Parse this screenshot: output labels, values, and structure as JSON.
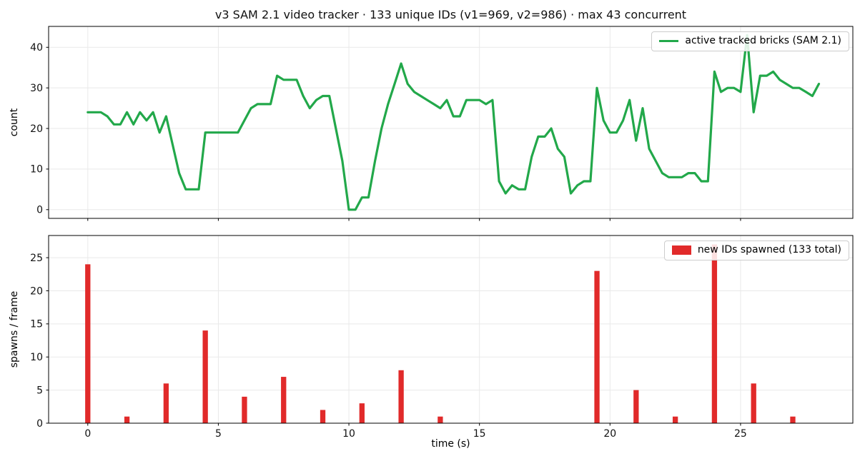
{
  "figure": {
    "title": "v3 SAM 2.1 video tracker · 133 unique IDs (v1=969, v2=986) · max 43 concurrent"
  },
  "style": {
    "grid_color": "#e9e9e9",
    "spine_color": "#000000",
    "background": "#ffffff",
    "tick_color": "#000000"
  },
  "chart_data": [
    {
      "type": "line",
      "legend": "active tracked bricks (SAM 2.1)",
      "ylabel": "count",
      "color": "#22a84a",
      "line_width": 3.2,
      "x_start": 0,
      "x_step": 0.25,
      "values": [
        24,
        24,
        24,
        23,
        21,
        21,
        24,
        21,
        24,
        22,
        24,
        19,
        23,
        16,
        9,
        5,
        5,
        5,
        19,
        19,
        19,
        19,
        19,
        19,
        22,
        25,
        26,
        26,
        26,
        33,
        32,
        32,
        32,
        28,
        25,
        27,
        28,
        28,
        20,
        12,
        0,
        0,
        3,
        3,
        12,
        20,
        26,
        31,
        36,
        31,
        29,
        28,
        27,
        26,
        25,
        27,
        23,
        23,
        27,
        27,
        27,
        26,
        27,
        7,
        4,
        6,
        5,
        5,
        13,
        18,
        18,
        20,
        15,
        13,
        4,
        6,
        7,
        7,
        30,
        22,
        19,
        19,
        22,
        27,
        17,
        25,
        15,
        12,
        9,
        8,
        8,
        8,
        9,
        9,
        7,
        7,
        34,
        29,
        30,
        30,
        29,
        43,
        24,
        33,
        33,
        34,
        32,
        31,
        30,
        30,
        29,
        28,
        31
      ],
      "xlim": [
        -1.5,
        29.3
      ],
      "ylim": [
        -2.15,
        45.15
      ],
      "xticks": [
        0,
        5,
        10,
        15,
        20,
        25
      ],
      "yticks": [
        0,
        10,
        20,
        30,
        40
      ],
      "show_xtick_labels": false,
      "grid": true,
      "legend_position": "upper right"
    },
    {
      "type": "bar",
      "legend": "new IDs spawned (133 total)",
      "ylabel": "spawns / frame",
      "xlabel": "time (s)",
      "color": "#e12a2a",
      "bar_width": 0.2,
      "x": [
        0,
        1.5,
        3,
        4.5,
        6,
        7.5,
        9,
        10.5,
        12,
        13.5,
        19.5,
        21,
        22.5,
        24,
        25.5,
        27
      ],
      "values": [
        24,
        1,
        6,
        14,
        4,
        7,
        2,
        3,
        8,
        1,
        23,
        5,
        1,
        27,
        6,
        1
      ],
      "xlim": [
        -1.5,
        29.3
      ],
      "ylim": [
        0,
        28.35
      ],
      "xticks": [
        0,
        5,
        10,
        15,
        20,
        25
      ],
      "yticks": [
        0,
        5,
        10,
        15,
        20,
        25
      ],
      "show_xtick_labels": true,
      "grid": true,
      "legend_position": "upper right"
    }
  ]
}
